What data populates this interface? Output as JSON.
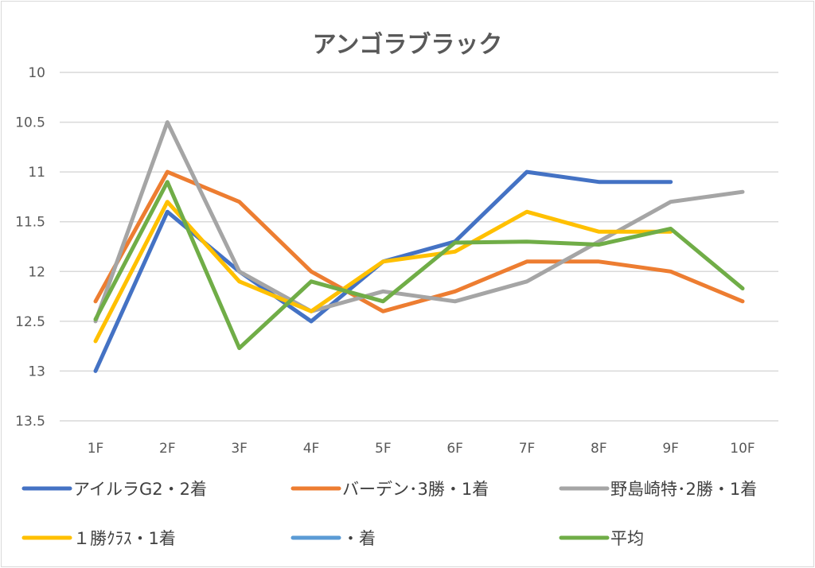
{
  "chart_data": {
    "type": "line",
    "title": "アンゴラブラック",
    "xlabel": "",
    "ylabel": "",
    "categories": [
      "1F",
      "2F",
      "3F",
      "4F",
      "5F",
      "6F",
      "7F",
      "8F",
      "9F",
      "10F"
    ],
    "ylim": [
      10,
      13.5
    ],
    "y_reversed": true,
    "y_ticks": [
      "10",
      "10.5",
      "11",
      "11.5",
      "12",
      "12.5",
      "13",
      "13.5"
    ],
    "grid": true,
    "legend_position": "bottom",
    "series": [
      {
        "name": "アイルラG2・2着",
        "color": "#4472c4",
        "values": [
          13.0,
          11.4,
          12.0,
          12.5,
          11.9,
          11.7,
          11.0,
          11.1,
          11.1,
          null
        ]
      },
      {
        "name": "バーデン･3勝・1着",
        "color": "#ed7d31",
        "values": [
          12.3,
          11.0,
          11.3,
          12.0,
          12.4,
          12.2,
          11.9,
          11.9,
          12.0,
          12.3
        ]
      },
      {
        "name": "野島崎特･2勝・1着",
        "color": "#a5a5a5",
        "values": [
          12.5,
          10.5,
          12.0,
          12.4,
          12.2,
          12.3,
          12.1,
          11.7,
          11.3,
          11.2
        ]
      },
      {
        "name": "１勝ｸﾗｽ・1着",
        "color": "#ffc000",
        "values": [
          12.7,
          11.3,
          12.1,
          12.4,
          11.9,
          11.8,
          11.4,
          11.6,
          11.6,
          null
        ]
      },
      {
        "name": "・着",
        "color": "#5b9bd5",
        "values": [
          null,
          null,
          null,
          null,
          null,
          null,
          null,
          null,
          null,
          null
        ]
      },
      {
        "name": "平均",
        "color": "#70ad47",
        "values": [
          12.48,
          11.1,
          12.77,
          12.1,
          12.3,
          11.71,
          11.7,
          11.73,
          11.57,
          12.17
        ]
      }
    ]
  }
}
